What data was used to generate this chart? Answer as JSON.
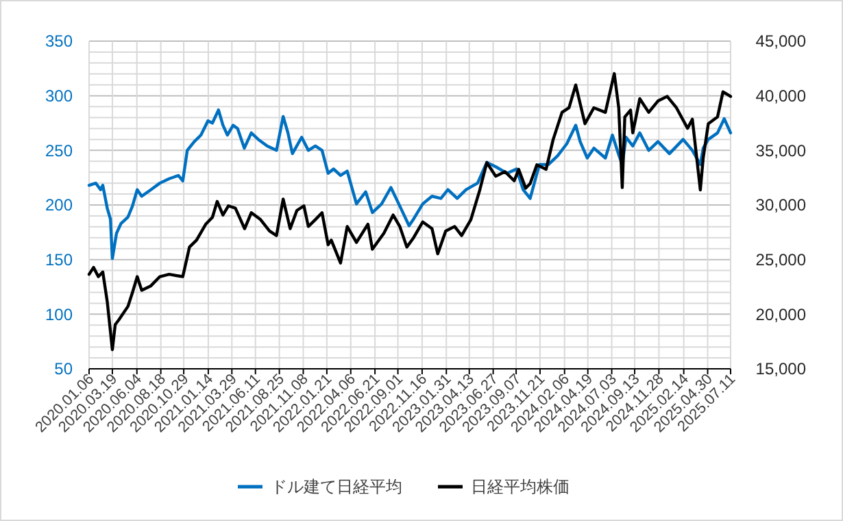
{
  "chart_data": {
    "type": "line",
    "xlim": [
      "2020-01-06",
      "2025-07-11"
    ],
    "xticks": [
      {
        "value": "2020-01-06",
        "label": "2020.01.06"
      },
      {
        "value": "2020-03-19",
        "label": "2020.03.19"
      },
      {
        "value": "2020-06-04",
        "label": "2020.06.04"
      },
      {
        "value": "2020-08-18",
        "label": "2020.08.18"
      },
      {
        "value": "2020-10-29",
        "label": "2020.10.29"
      },
      {
        "value": "2021-01-14",
        "label": "2021.01.14"
      },
      {
        "value": "2021-03-29",
        "label": "2021.03.29"
      },
      {
        "value": "2021-06-11",
        "label": "2021.06.11"
      },
      {
        "value": "2021-08-25",
        "label": "2021.08.25"
      },
      {
        "value": "2021-11-08",
        "label": "2021.11.08"
      },
      {
        "value": "2022-01-21",
        "label": "2022.01.21"
      },
      {
        "value": "2022-04-06",
        "label": "2022.04.06"
      },
      {
        "value": "2022-06-21",
        "label": "2022.06.21"
      },
      {
        "value": "2022-09-01",
        "label": "2022.09.01"
      },
      {
        "value": "2022-11-16",
        "label": "2022.11.16"
      },
      {
        "value": "2023-01-31",
        "label": "2023.01.31"
      },
      {
        "value": "2023-04-13",
        "label": "2023.04.13"
      },
      {
        "value": "2023-06-27",
        "label": "2023.06.27"
      },
      {
        "value": "2023-09-07",
        "label": "2023.09.07"
      },
      {
        "value": "2023-11-21",
        "label": "2023.11.21"
      },
      {
        "value": "2024-02-06",
        "label": "2024.02.06"
      },
      {
        "value": "2024-04-19",
        "label": "2024.04.19"
      },
      {
        "value": "2024-07-03",
        "label": "2024.07.03"
      },
      {
        "value": "2024-09-13",
        "label": "2024.09.13"
      },
      {
        "value": "2024-11-28",
        "label": "2024.11.28"
      },
      {
        "value": "2025-02-14",
        "label": "2025.02.14"
      },
      {
        "value": "2025-04-30",
        "label": "2025.04.30"
      },
      {
        "value": "2025-07-11",
        "label": "2025.07.11"
      }
    ],
    "ylim": [
      50,
      350
    ],
    "yticks": [
      50,
      {
        "value": 60,
        "label": null
      },
      {
        "value": 70,
        "label": null
      },
      {
        "value": 80,
        "label": null
      },
      {
        "value": 90,
        "label": null
      },
      100,
      {
        "value": 110,
        "label": null
      },
      {
        "value": 120,
        "label": null
      },
      {
        "value": 130,
        "label": null
      },
      {
        "value": 140,
        "label": null
      },
      150,
      {
        "value": 160,
        "label": null
      },
      {
        "value": 170,
        "label": null
      },
      {
        "value": 180,
        "label": null
      },
      {
        "value": 190,
        "label": null
      },
      200,
      {
        "value": 210,
        "label": null
      },
      {
        "value": 220,
        "label": null
      },
      {
        "value": 230,
        "label": null
      },
      {
        "value": 240,
        "label": null
      },
      250,
      {
        "value": 260,
        "label": null
      },
      {
        "value": 270,
        "label": null
      },
      {
        "value": 280,
        "label": null
      },
      {
        "value": 290,
        "label": null
      },
      300,
      {
        "value": 310,
        "label": null
      },
      {
        "value": 320,
        "label": null
      },
      {
        "value": 330,
        "label": null
      },
      {
        "value": 340,
        "label": null
      },
      350
    ],
    "y2lim": [
      15000,
      45000
    ],
    "y2ticks": [
      {
        "value": 15000,
        "label": "15,000"
      },
      {
        "value": 20000,
        "label": "20,000"
      },
      {
        "value": 25000,
        "label": "25,000"
      },
      {
        "value": 30000,
        "label": "30,000"
      },
      {
        "value": 35000,
        "label": "35,000"
      },
      {
        "value": 40000,
        "label": "40,000"
      },
      {
        "value": 45000,
        "label": "45,000"
      }
    ],
    "grid": true,
    "legend": "bottom",
    "series": [
      {
        "name": "ドル建て日経平均",
        "color": "#0070c0",
        "x": [
          "2020-01-06",
          "2020-01-27",
          "2020-02-11",
          "2020-02-18",
          "2020-03-03",
          "2020-03-13",
          "2020-03-19",
          "2020-04-01",
          "2020-04-15",
          "2020-05-07",
          "2020-05-21",
          "2020-06-05",
          "2020-06-19",
          "2020-07-18",
          "2020-08-15",
          "2020-09-13",
          "2020-10-12",
          "2020-10-26",
          "2020-11-09",
          "2020-12-01",
          "2020-12-22",
          "2021-01-13",
          "2021-01-27",
          "2021-02-15",
          "2021-03-01",
          "2021-03-15",
          "2021-04-02",
          "2021-04-16",
          "2021-05-07",
          "2021-05-29",
          "2021-06-20",
          "2021-07-18",
          "2021-08-16",
          "2021-09-06",
          "2021-09-21",
          "2021-10-05",
          "2021-11-03",
          "2021-11-24",
          "2021-12-16",
          "2022-01-06",
          "2022-01-25",
          "2022-02-11",
          "2022-03-05",
          "2022-03-26",
          "2022-04-24",
          "2022-05-23",
          "2022-06-13",
          "2022-07-12",
          "2022-08-10",
          "2022-09-07",
          "2022-10-06",
          "2022-10-20",
          "2022-11-18",
          "2022-12-17",
          "2023-01-14",
          "2023-02-05",
          "2023-03-06",
          "2023-04-03",
          "2023-05-09",
          "2023-06-07",
          "2023-07-05",
          "2023-08-10",
          "2023-09-08",
          "2023-09-29",
          "2023-10-21",
          "2023-11-19",
          "2023-12-17",
          "2024-01-15",
          "2024-02-13",
          "2024-03-12",
          "2024-03-26",
          "2024-04-17",
          "2024-05-08",
          "2024-06-13",
          "2024-07-05",
          "2024-07-26",
          "2024-08-05",
          "2024-08-17",
          "2024-09-07",
          "2024-09-29",
          "2024-10-27",
          "2024-11-25",
          "2024-12-31",
          "2025-02-12",
          "2025-03-13",
          "2025-04-07",
          "2025-04-16",
          "2025-05-02",
          "2025-05-31",
          "2025-06-21",
          "2025-07-11"
        ],
        "values": [
          218,
          220,
          214,
          218,
          197,
          187,
          151,
          174,
          183,
          189,
          199,
          214,
          208,
          214,
          220,
          224,
          227,
          222,
          250,
          258,
          264,
          277,
          275,
          287,
          273,
          264,
          273,
          270,
          252,
          266,
          260,
          254,
          250,
          281,
          266,
          247,
          262,
          250,
          254,
          250,
          229,
          233,
          227,
          231,
          201,
          212,
          193,
          201,
          216,
          199,
          181,
          187,
          201,
          208,
          206,
          214,
          206,
          214,
          220,
          239,
          235,
          229,
          233,
          214,
          206,
          237,
          237,
          245,
          256,
          273,
          258,
          243,
          252,
          243,
          264,
          245,
          237,
          262,
          254,
          266,
          250,
          258,
          247,
          260,
          250,
          237,
          252,
          260,
          266,
          279,
          266
        ]
      },
      {
        "name": "日経平均株価",
        "color": "#000000",
        "axis": "y2",
        "x": [
          "2020-01-06",
          "2020-01-20",
          "2020-02-04",
          "2020-02-18",
          "2020-03-03",
          "2020-03-19",
          "2020-03-28",
          "2020-04-08",
          "2020-05-07",
          "2020-05-21",
          "2020-06-05",
          "2020-06-19",
          "2020-07-18",
          "2020-08-15",
          "2020-09-13",
          "2020-10-26",
          "2020-11-16",
          "2020-12-08",
          "2021-01-06",
          "2021-01-27",
          "2021-02-11",
          "2021-03-01",
          "2021-03-18",
          "2021-04-09",
          "2021-05-08",
          "2021-05-29",
          "2021-06-27",
          "2021-07-25",
          "2021-08-16",
          "2021-09-06",
          "2021-09-28",
          "2021-10-19",
          "2021-11-10",
          "2021-11-24",
          "2021-12-16",
          "2022-01-06",
          "2022-01-25",
          "2022-02-04",
          "2022-03-05",
          "2022-03-26",
          "2022-04-24",
          "2022-05-30",
          "2022-06-13",
          "2022-07-19",
          "2022-08-17",
          "2022-09-07",
          "2022-09-29",
          "2022-10-20",
          "2022-11-18",
          "2022-12-17",
          "2023-01-04",
          "2023-01-29",
          "2023-02-26",
          "2023-03-20",
          "2023-04-18",
          "2023-05-16",
          "2023-06-07",
          "2023-07-05",
          "2023-08-03",
          "2023-09-01",
          "2023-09-15",
          "2023-10-07",
          "2023-10-21",
          "2023-11-11",
          "2023-12-10",
          "2024-01-01",
          "2024-01-29",
          "2024-02-20",
          "2024-03-12",
          "2024-04-10",
          "2024-05-08",
          "2024-06-13",
          "2024-07-11",
          "2024-07-25",
          "2024-08-05",
          "2024-08-13",
          "2024-08-31",
          "2024-09-07",
          "2024-09-29",
          "2024-10-27",
          "2024-11-25",
          "2024-12-24",
          "2025-01-22",
          "2025-02-26",
          "2025-03-13",
          "2025-04-07",
          "2025-04-16",
          "2025-05-02",
          "2025-05-31",
          "2025-06-17",
          "2025-07-11"
        ],
        "values": [
          23650,
          24280,
          23440,
          23860,
          21140,
          16750,
          19050,
          19470,
          20720,
          21980,
          23440,
          22190,
          22600,
          23440,
          23650,
          23440,
          26150,
          26780,
          28240,
          28870,
          30330,
          29080,
          29920,
          29710,
          27830,
          29290,
          28660,
          27620,
          27200,
          30540,
          27830,
          29500,
          29920,
          28030,
          28660,
          29290,
          26360,
          26780,
          24690,
          28030,
          26570,
          28240,
          25950,
          27410,
          29080,
          28030,
          26150,
          26990,
          28450,
          27830,
          25530,
          27620,
          28030,
          27200,
          28660,
          31380,
          33880,
          32630,
          33050,
          32210,
          33260,
          31540,
          31960,
          33680,
          33260,
          35970,
          38480,
          38900,
          40990,
          37440,
          38900,
          38480,
          42030,
          38900,
          31590,
          38060,
          38690,
          36600,
          39730,
          38480,
          39520,
          39940,
          38900,
          37020,
          37850,
          31380,
          34300,
          37440,
          38060,
          40360,
          39940
        ]
      }
    ]
  }
}
